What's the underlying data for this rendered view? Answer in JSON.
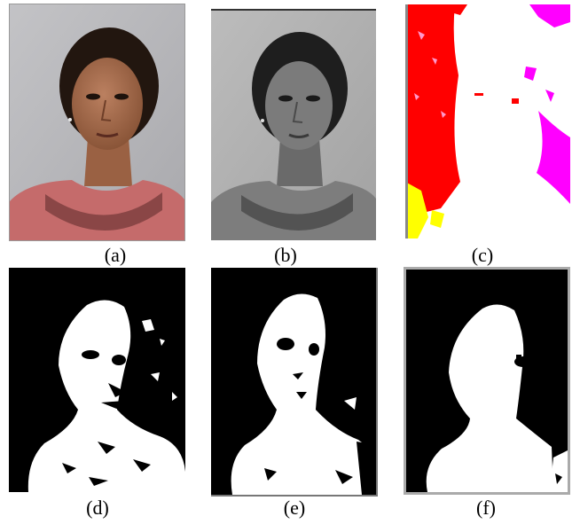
{
  "figure": {
    "captions": [
      "(a)",
      "(b)",
      "(c)",
      "(d)",
      "(e)",
      "(f)"
    ],
    "panels": [
      {
        "label": "(a)",
        "content": "original color face photograph"
      },
      {
        "label": "(b)",
        "content": "grayscale version of photograph"
      },
      {
        "label": "(c)",
        "content": "color-coded segmentation: red, magenta, yellow background; white face region"
      },
      {
        "label": "(d)",
        "content": "binary skin mask, noisy"
      },
      {
        "label": "(e)",
        "content": "binary skin mask, cleaner"
      },
      {
        "label": "(f)",
        "content": "binary skin mask, smoothed"
      }
    ]
  },
  "colors": {
    "wall": "#b9b9bd",
    "skin": "#a9704e",
    "hair": "#22160f",
    "dress": "#c56b6b",
    "seg_red": "#ff0000",
    "seg_magenta": "#ff00ff",
    "seg_yellow": "#ffff00",
    "mask_fg": "#ffffff",
    "mask_bg": "#000000"
  }
}
